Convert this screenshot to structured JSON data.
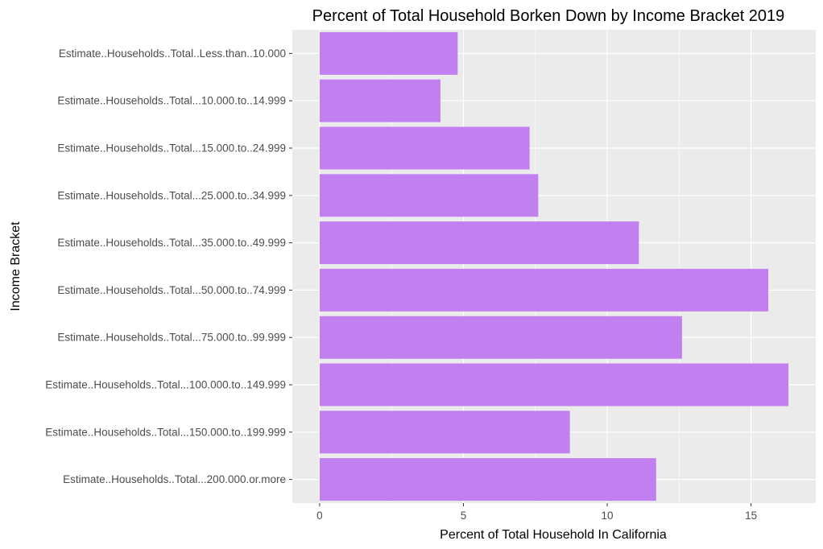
{
  "chart_data": {
    "type": "bar",
    "orientation": "horizontal",
    "title": "Percent of Total Household Borken Down by Income Bracket 2019",
    "xlabel": "Percent of Total Household In California",
    "ylabel": "Income Bracket",
    "categories": [
      "Estimate..Households..Total..Less.than..10.000",
      "Estimate..Households..Total...10.000.to..14.999",
      "Estimate..Households..Total...15.000.to..24.999",
      "Estimate..Households..Total...25.000.to..34.999",
      "Estimate..Households..Total...35.000.to..49.999",
      "Estimate..Households..Total...50.000.to..74.999",
      "Estimate..Households..Total...75.000.to..99.999",
      "Estimate..Households..Total...100.000.to..149.999",
      "Estimate..Households..Total...150.000.to..199.999",
      "Estimate..Households..Total...200.000.or.more"
    ],
    "values": [
      4.8,
      4.2,
      7.3,
      7.6,
      11.1,
      15.6,
      12.6,
      16.3,
      8.7,
      11.7
    ],
    "xlim": [
      -0.95,
      17.25
    ],
    "xticks": [
      "0",
      "5",
      "10",
      "15"
    ],
    "grid": true,
    "bar_color": "#c17ff0",
    "panel_background": "#ebebeb",
    "grid_color": "#ffffff"
  }
}
